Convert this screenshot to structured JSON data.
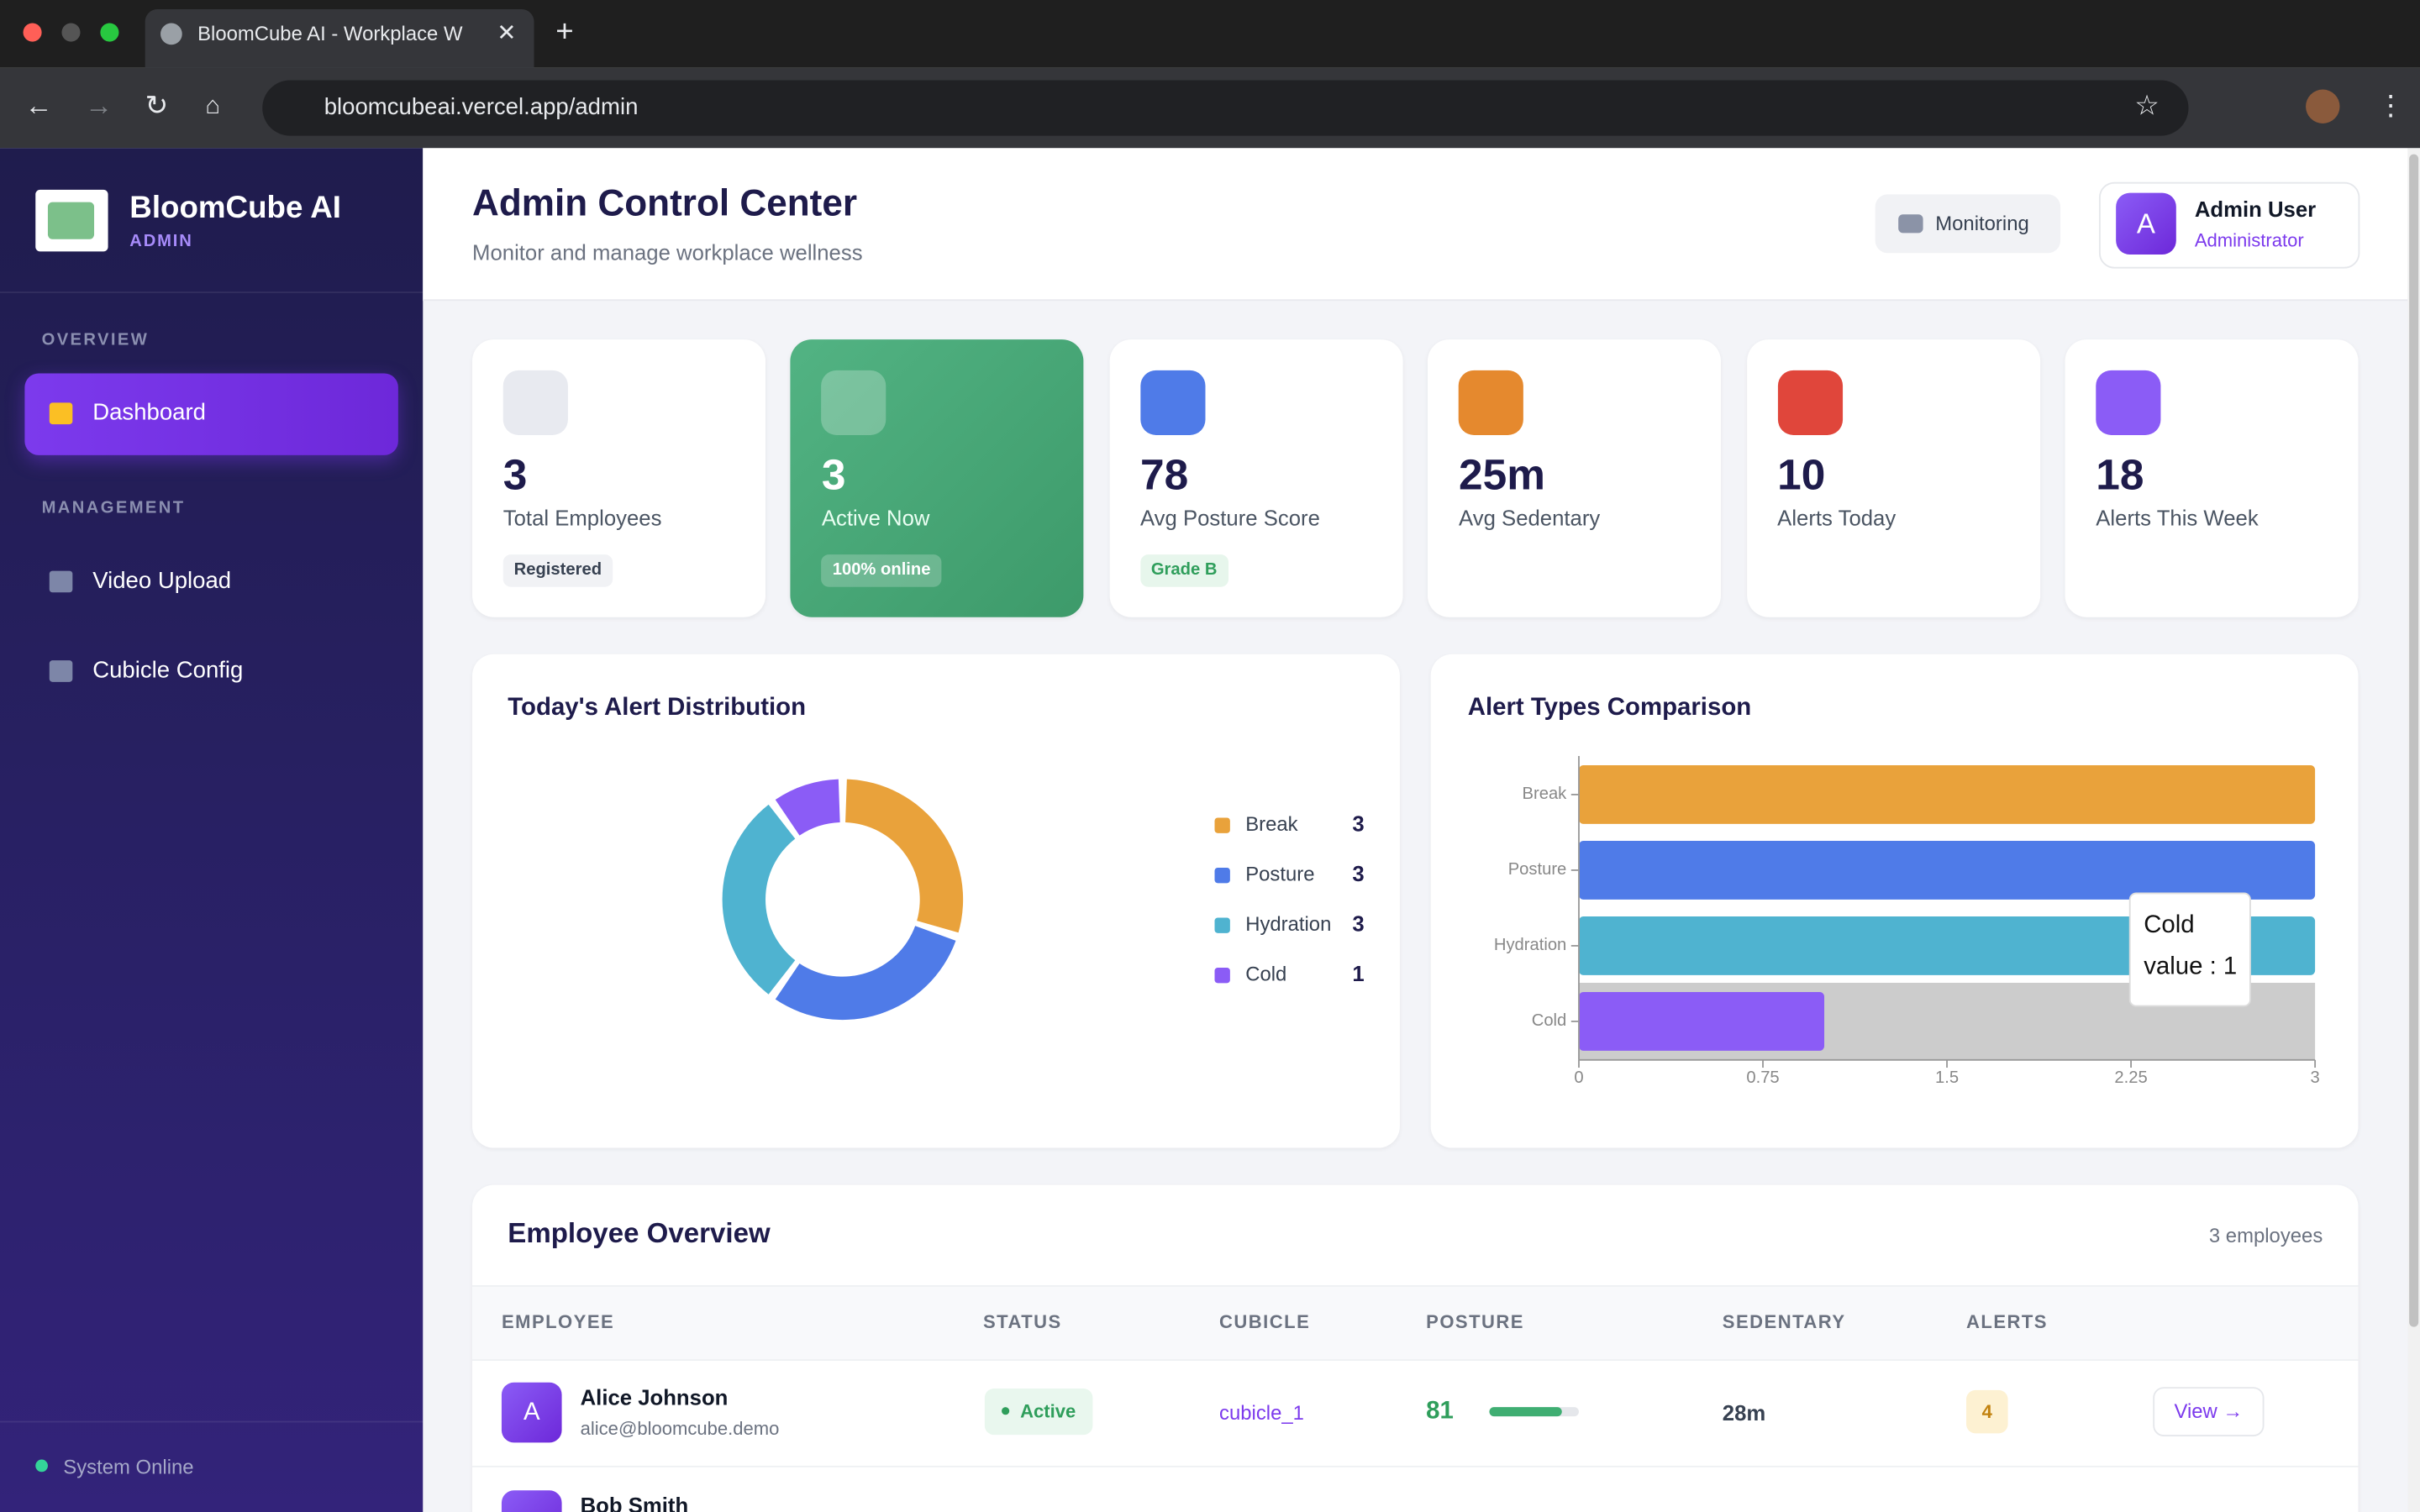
{
  "browser": {
    "tab_title": "BloomCube AI - Workplace W",
    "url": "bloomcubeai.vercel.app/admin"
  },
  "sidebar": {
    "brand": "BloomCube AI",
    "role": "ADMIN",
    "sections": [
      {
        "heading": "OVERVIEW",
        "items": [
          "Dashboard"
        ]
      },
      {
        "heading": "MANAGEMENT",
        "items": [
          "Video Upload",
          "Cubicle Config"
        ]
      }
    ],
    "status": "System Online"
  },
  "header": {
    "title": "Admin Control Center",
    "subtitle": "Monitor and manage workplace wellness",
    "monitoring": "Monitoring",
    "user_initial": "A",
    "user_name": "Admin User",
    "user_role": "Administrator"
  },
  "stats": [
    {
      "value": 3,
      "label": "Total Employees",
      "badge": "Registered"
    },
    {
      "value": 3,
      "label": "Active Now",
      "badge": "100% online"
    },
    {
      "value": 78,
      "label": "Avg Posture Score",
      "badge": "Grade B"
    },
    {
      "value": "25m",
      "label": "Avg Sedentary"
    },
    {
      "value": 10,
      "label": "Alerts Today"
    },
    {
      "value": 18,
      "label": "Alerts This Week"
    }
  ],
  "alert_distribution": {
    "type": "pie",
    "title": "Today's Alert Distribution",
    "categories": [
      "Break",
      "Posture",
      "Hydration",
      "Cold"
    ],
    "values": [
      3,
      3,
      3,
      1
    ],
    "colors": [
      "#e9a23b",
      "#4f7be8",
      "#4fb3d0",
      "#8b5cf6"
    ]
  },
  "alert_types": {
    "type": "bar",
    "title": "Alert Types Comparison",
    "categories": [
      "Break",
      "Posture",
      "Hydration",
      "Cold"
    ],
    "values": [
      3,
      3,
      3,
      1
    ],
    "colors": [
      "#e9a23b",
      "#4f7be8",
      "#4fb3d0",
      "#8b5cf6"
    ],
    "xlim": [
      0,
      3
    ],
    "xticks": [
      0,
      0.75,
      1.5,
      2.25,
      3
    ],
    "tooltip": {
      "name": "Cold",
      "text": "value : 1"
    }
  },
  "table": {
    "title": "Employee Overview",
    "count": "3 employees",
    "columns": [
      "EMPLOYEE",
      "STATUS",
      "CUBICLE",
      "POSTURE",
      "SEDENTARY",
      "ALERTS"
    ],
    "rows": [
      {
        "initial": "A",
        "name": "Alice Johnson",
        "email": "alice@bloomcube.demo",
        "status": "Active",
        "cubicle": "cubicle_1",
        "posture": 81,
        "sedentary": "28m",
        "alerts": 4,
        "action": "View →"
      },
      {
        "name": "Bob Smith"
      }
    ]
  }
}
